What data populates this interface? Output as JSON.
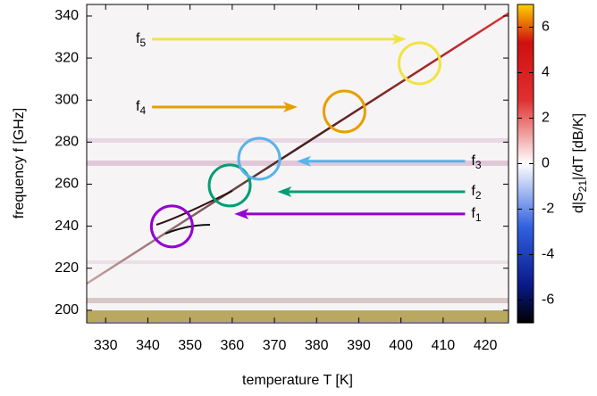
{
  "chart_data": {
    "type": "heatmap",
    "xlabel": "temperature T [K]",
    "ylabel": "frequency f [GHz]",
    "colorbar_label": [
      "d|S",
      "21",
      "|/dT [dB/K]"
    ],
    "xlim": [
      325.5,
      425.5
    ],
    "xticks": [
      330,
      340,
      350,
      360,
      370,
      380,
      390,
      400,
      410,
      420
    ],
    "ylim": [
      194,
      345.5
    ],
    "yticks": [
      200,
      220,
      240,
      260,
      280,
      300,
      320,
      340
    ],
    "clim": [
      -7,
      7
    ],
    "cticks": [
      -6,
      -4,
      -2,
      0,
      2,
      4,
      6
    ],
    "annotations": [
      {
        "label": "f",
        "subscript": "1",
        "color": "#9400d3",
        "circle": [
          345.7,
          239.9
        ],
        "arrow": {
          "x": [
            415.2,
            360.5
          ],
          "y": 245.8
        }
      },
      {
        "label": "f",
        "subscript": "2",
        "color": "#009e73",
        "circle": [
          359.4,
          259.4
        ],
        "arrow": {
          "x": [
            415.2,
            370.7
          ],
          "y": 256.4
        }
      },
      {
        "label": "f",
        "subscript": "3",
        "color": "#56b4e9",
        "circle": [
          366.4,
          272.1
        ],
        "arrow": {
          "x": [
            415.2,
            375.3
          ],
          "y": 270.9
        }
      },
      {
        "label": "f",
        "subscript": "4",
        "color": "#e69f00",
        "circle": [
          386.6,
          294.6
        ],
        "arrow": {
          "x": [
            341,
            375.5
          ],
          "y": 296.7
        }
      },
      {
        "label": "f",
        "subscript": "5",
        "color": "#f0e442",
        "circle": [
          404.4,
          317.5
        ],
        "arrow": {
          "x": [
            341,
            401.3
          ],
          "y": 329
        }
      }
    ]
  }
}
